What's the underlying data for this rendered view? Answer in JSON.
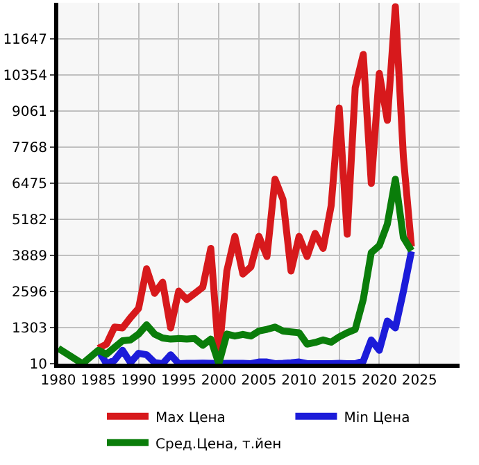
{
  "chart_data": {
    "type": "line",
    "x": [
      1980,
      1983,
      1985,
      1986,
      1987,
      1988,
      1989,
      1990,
      1991,
      1992,
      1993,
      1994,
      1995,
      1996,
      1997,
      1998,
      1999,
      2000,
      2001,
      2002,
      2003,
      2004,
      2005,
      2006,
      2007,
      2008,
      2009,
      2010,
      2011,
      2012,
      2013,
      2014,
      2015,
      2016,
      2017,
      2018,
      2019,
      2020,
      2021,
      2022,
      2023,
      2024
    ],
    "series": [
      {
        "name": "Max Цена",
        "color": "#d7191c",
        "values": [
          null,
          null,
          560,
          710,
          1320,
          1290,
          1660,
          1990,
          3410,
          2530,
          2930,
          1290,
          2610,
          2310,
          2530,
          2750,
          4140,
          300,
          3330,
          4570,
          3220,
          3480,
          4570,
          3850,
          6620,
          5890,
          3330,
          4570,
          3850,
          4680,
          4140,
          5670,
          9170,
          4650,
          9900,
          11090,
          6470,
          10410,
          8730,
          12800,
          7420,
          4210
        ]
      },
      {
        "name": "Min Цена",
        "color": "#1c1cd9",
        "values": [
          null,
          null,
          490,
          10,
          130,
          490,
          50,
          380,
          330,
          50,
          10,
          330,
          10,
          20,
          20,
          30,
          20,
          10,
          20,
          20,
          20,
          10,
          70,
          70,
          10,
          20,
          40,
          70,
          10,
          10,
          10,
          10,
          20,
          10,
          10,
          100,
          860,
          490,
          1540,
          1290,
          2600,
          4030
        ]
      },
      {
        "name": "Сред.Цена, т.йен",
        "color": "#0a7d0a",
        "values": [
          560,
          10,
          490,
          350,
          590,
          830,
          860,
          1070,
          1400,
          1070,
          930,
          890,
          910,
          890,
          910,
          670,
          890,
          10,
          1070,
          1000,
          1060,
          1000,
          1180,
          1240,
          1320,
          1180,
          1150,
          1120,
          710,
          770,
          860,
          780,
          970,
          1120,
          1240,
          2310,
          3990,
          4240,
          5010,
          6620,
          4530,
          4060
        ]
      }
    ],
    "xlim": [
      1980,
      2030
    ],
    "xticks": [
      1980,
      1985,
      1990,
      1995,
      2000,
      2005,
      2010,
      2015,
      2020,
      2025
    ],
    "ylim": [
      10,
      12940
    ],
    "yticks": [
      10,
      1303,
      2596,
      3889,
      5182,
      6475,
      7768,
      9061,
      10354,
      11647
    ],
    "grid": true,
    "legend": "bottom",
    "marker": "none",
    "line_style": "solid"
  }
}
